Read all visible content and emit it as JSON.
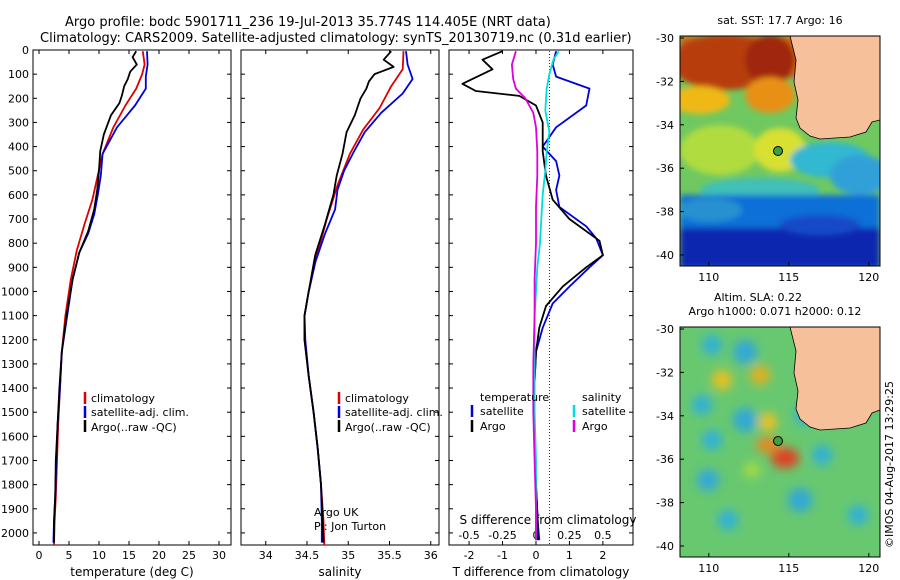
{
  "header": {
    "line1": "Argo profile: bodc 5901711_236 19-Jul-2013 35.774S 114.405E (NRT data)",
    "line2": "Climatology: CARS2009. Satellite-adjusted climatology: synTS_20130719.nc (0.31d earlier)"
  },
  "colors": {
    "climatology": "#dd0000",
    "satellite": "#0000dd",
    "argo": "#000000",
    "sal_satellite": "#00dddd",
    "sal_argo": "#dd00dd",
    "land": "#f5c09a"
  },
  "legend": {
    "climatology": "climatology",
    "satellite": "satellite-adj. clim.",
    "argo": "Argo(..raw -QC)",
    "temperature_head": "temperature",
    "salinity_head": "salinity",
    "satellite_short": "satellite",
    "argo_short": "Argo"
  },
  "float_info": {
    "line1": "Argo UK",
    "line2": "PI: Jon Turton"
  },
  "footer": {
    "timestamp": "©IMOS 04-Aug-2017 13:29:25"
  },
  "map_top": {
    "title": "sat. SST: 17.7 Argo: 16",
    "icon": "sst-map"
  },
  "map_bottom": {
    "title1": "Altim. SLA: 0.22",
    "title2": "Argo h1000: 0.071 h2000: 0.12",
    "icon": "sla-map"
  },
  "map_axes": {
    "lat_ticks": [
      "-30",
      "-32",
      "-34",
      "-36",
      "-38",
      "-40"
    ],
    "lon_ticks": [
      "110",
      "115",
      "120"
    ]
  },
  "chart_data": [
    {
      "type": "line",
      "xlabel": "temperature (deg C)",
      "ylabel": "",
      "xlim": [
        -1,
        32
      ],
      "ylim": [
        2050,
        0
      ],
      "xticks": [
        "0",
        "5",
        "10",
        "15",
        "20",
        "25",
        "30"
      ],
      "yticks": [
        "0",
        "100",
        "200",
        "300",
        "400",
        "500",
        "600",
        "700",
        "800",
        "900",
        "1000",
        "1100",
        "1200",
        "1300",
        "1400",
        "1500",
        "1600",
        "1700",
        "1800",
        "1900",
        "2000"
      ],
      "series": [
        {
          "name": "climatology",
          "color": "#dd0000",
          "points": [
            [
              17.3,
              5
            ],
            [
              17.6,
              60
            ],
            [
              17.2,
              100
            ],
            [
              16.2,
              160
            ],
            [
              14.4,
              230
            ],
            [
              12.4,
              320
            ],
            [
              10.6,
              430
            ],
            [
              9.7,
              530
            ],
            [
              8.9,
              620
            ],
            [
              7.6,
              720
            ],
            [
              6.3,
              830
            ],
            [
              5.3,
              950
            ],
            [
              4.4,
              1100
            ],
            [
              3.8,
              1250
            ],
            [
              3.5,
              1400
            ],
            [
              3.2,
              1550
            ],
            [
              3.0,
              1700
            ],
            [
              2.8,
              1850
            ],
            [
              2.6,
              1950
            ],
            [
              2.5,
              2050
            ]
          ]
        },
        {
          "name": "satellite-adj. clim.",
          "color": "#0000dd",
          "points": [
            [
              18.0,
              5
            ],
            [
              18.1,
              60
            ],
            [
              17.8,
              110
            ],
            [
              17.8,
              160
            ],
            [
              16.0,
              230
            ],
            [
              13.0,
              320
            ],
            [
              10.6,
              430
            ],
            [
              10.3,
              520
            ],
            [
              9.8,
              600
            ],
            [
              9.2,
              680
            ],
            [
              8.2,
              760
            ],
            [
              6.7,
              840
            ],
            [
              5.6,
              950
            ],
            [
              4.7,
              1100
            ],
            [
              3.8,
              1250
            ],
            [
              3.5,
              1400
            ],
            [
              3.1,
              1550
            ],
            [
              2.9,
              1700
            ],
            [
              2.7,
              1850
            ],
            [
              2.5,
              1950
            ],
            [
              2.4,
              2040
            ]
          ]
        },
        {
          "name": "Argo(..raw -QC)",
          "color": "#000000",
          "points": [
            [
              16.2,
              5
            ],
            [
              15.6,
              30
            ],
            [
              16.3,
              60
            ],
            [
              15.2,
              90
            ],
            [
              14.8,
              120
            ],
            [
              14.2,
              150
            ],
            [
              13.8,
              190
            ],
            [
              13.4,
              220
            ],
            [
              12.0,
              270
            ],
            [
              10.8,
              350
            ],
            [
              10.2,
              420
            ],
            [
              10.0,
              500
            ],
            [
              9.7,
              580
            ],
            [
              9.2,
              660
            ],
            [
              8.2,
              750
            ],
            [
              6.7,
              840
            ],
            [
              5.6,
              950
            ],
            [
              4.6,
              1100
            ],
            [
              3.8,
              1250
            ],
            [
              3.4,
              1400
            ],
            [
              3.1,
              1550
            ],
            [
              2.8,
              1700
            ],
            [
              2.7,
              1850
            ],
            [
              2.5,
              1960
            ],
            [
              2.5,
              2040
            ]
          ]
        }
      ]
    },
    {
      "type": "line",
      "xlabel": "salinity",
      "ylabel": "",
      "xlim": [
        33.7,
        36.1
      ],
      "ylim": [
        2050,
        0
      ],
      "xticks": [
        "34",
        "34.5",
        "35",
        "35.5",
        "36"
      ],
      "yticks": [],
      "series": [
        {
          "name": "climatology",
          "color": "#dd0000",
          "points": [
            [
              35.67,
              5
            ],
            [
              35.66,
              80
            ],
            [
              35.52,
              150
            ],
            [
              35.38,
              240
            ],
            [
              35.18,
              330
            ],
            [
              35.02,
              430
            ],
            [
              34.87,
              560
            ],
            [
              34.74,
              700
            ],
            [
              34.62,
              850
            ],
            [
              34.52,
              1000
            ],
            [
              34.47,
              1100
            ],
            [
              34.47,
              1200
            ],
            [
              34.52,
              1350
            ],
            [
              34.58,
              1500
            ],
            [
              34.63,
              1650
            ],
            [
              34.67,
              1800
            ],
            [
              34.7,
              1950
            ],
            [
              34.71,
              2050
            ]
          ]
        },
        {
          "name": "satellite-adj. clim.",
          "color": "#0000dd",
          "points": [
            [
              35.7,
              5
            ],
            [
              35.72,
              60
            ],
            [
              35.78,
              120
            ],
            [
              35.66,
              180
            ],
            [
              35.4,
              260
            ],
            [
              35.2,
              340
            ],
            [
              35.07,
              420
            ],
            [
              34.95,
              500
            ],
            [
              34.87,
              580
            ],
            [
              34.84,
              660
            ],
            [
              34.72,
              760
            ],
            [
              34.6,
              880
            ],
            [
              34.52,
              1000
            ],
            [
              34.47,
              1100
            ],
            [
              34.48,
              1200
            ],
            [
              34.52,
              1350
            ],
            [
              34.58,
              1500
            ],
            [
              34.63,
              1650
            ],
            [
              34.67,
              1800
            ],
            [
              34.68,
              1950
            ],
            [
              34.68,
              2040
            ]
          ]
        },
        {
          "name": "Argo(..raw -QC)",
          "color": "#000000",
          "points": [
            [
              35.52,
              5
            ],
            [
              35.43,
              40
            ],
            [
              35.55,
              70
            ],
            [
              35.32,
              100
            ],
            [
              35.25,
              130
            ],
            [
              35.22,
              160
            ],
            [
              35.15,
              200
            ],
            [
              35.12,
              230
            ],
            [
              35.08,
              270
            ],
            [
              34.98,
              340
            ],
            [
              34.93,
              430
            ],
            [
              34.86,
              520
            ],
            [
              34.82,
              600
            ],
            [
              34.72,
              720
            ],
            [
              34.6,
              850
            ],
            [
              34.52,
              1000
            ],
            [
              34.47,
              1100
            ],
            [
              34.47,
              1200
            ],
            [
              34.52,
              1350
            ],
            [
              34.58,
              1500
            ],
            [
              34.63,
              1650
            ],
            [
              34.67,
              1800
            ],
            [
              34.69,
              1950
            ],
            [
              34.7,
              2040
            ]
          ]
        }
      ]
    },
    {
      "type": "line",
      "xlabel": "T difference from climatology",
      "xlabel_top": "S difference from climatology",
      "xlim": [
        -2.6,
        2.9
      ],
      "ylim": [
        2050,
        0
      ],
      "xticks": [
        "-2",
        "-1",
        "0",
        "1",
        "2"
      ],
      "xticks_top": [
        "-0.5",
        "-0.25",
        "0",
        "0.25",
        "0.5"
      ],
      "series": [
        {
          "name": "temperature satellite",
          "color": "#0000dd",
          "points": [
            [
              0.6,
              5
            ],
            [
              0.5,
              60
            ],
            [
              0.6,
              110
            ],
            [
              1.6,
              160
            ],
            [
              1.5,
              230
            ],
            [
              0.6,
              320
            ],
            [
              0.2,
              400
            ],
            [
              0.6,
              460
            ],
            [
              0.7,
              520
            ],
            [
              0.6,
              580
            ],
            [
              0.7,
              650
            ],
            [
              1.5,
              730
            ],
            [
              1.8,
              780
            ],
            [
              2.0,
              850
            ],
            [
              1.6,
              900
            ],
            [
              1.0,
              980
            ],
            [
              0.5,
              1050
            ],
            [
              0.2,
              1150
            ],
            [
              0.0,
              1250
            ],
            [
              -0.05,
              1400
            ],
            [
              -0.05,
              1600
            ],
            [
              0.0,
              1800
            ],
            [
              0.05,
              1950
            ],
            [
              0.1,
              2030
            ]
          ]
        },
        {
          "name": "temperature Argo",
          "color": "#000000",
          "points": [
            [
              -1.0,
              5
            ],
            [
              -1.6,
              40
            ],
            [
              -1.3,
              80
            ],
            [
              -2.2,
              140
            ],
            [
              -1.8,
              170
            ],
            [
              -0.5,
              190
            ],
            [
              0.0,
              230
            ],
            [
              0.2,
              300
            ],
            [
              0.2,
              420
            ],
            [
              0.3,
              520
            ],
            [
              0.5,
              620
            ],
            [
              1.0,
              700
            ],
            [
              1.9,
              790
            ],
            [
              2.0,
              850
            ],
            [
              1.5,
              900
            ],
            [
              0.8,
              980
            ],
            [
              0.3,
              1060
            ],
            [
              0.1,
              1150
            ],
            [
              0.0,
              1250
            ],
            [
              -0.05,
              1400
            ],
            [
              -0.05,
              1600
            ],
            [
              0.0,
              1800
            ],
            [
              0.05,
              1950
            ],
            [
              0.05,
              2030
            ]
          ]
        },
        {
          "name": "salinity satellite",
          "color": "#00dddd",
          "points": [
            [
              0.17,
              5
            ],
            [
              0.13,
              40
            ],
            [
              0.1,
              100
            ],
            [
              0.08,
              160
            ],
            [
              0.07,
              250
            ],
            [
              0.1,
              340
            ],
            [
              0.08,
              420
            ],
            [
              0.07,
              500
            ],
            [
              0.05,
              600
            ],
            [
              0.04,
              700
            ],
            [
              0.03,
              800
            ],
            [
              0.01,
              900
            ],
            [
              0.0,
              1000
            ],
            [
              -0.01,
              1100
            ],
            [
              -0.01,
              1300
            ],
            [
              -0.01,
              1500
            ],
            [
              0.0,
              1700
            ],
            [
              0.0,
              1900
            ],
            [
              0.0,
              2030
            ]
          ]
        },
        {
          "name": "salinity Argo",
          "color": "#dd00dd",
          "points": [
            [
              -0.15,
              5
            ],
            [
              -0.18,
              60
            ],
            [
              -0.17,
              120
            ],
            [
              -0.15,
              160
            ],
            [
              -0.08,
              200
            ],
            [
              -0.02,
              260
            ],
            [
              0.0,
              320
            ],
            [
              0.01,
              420
            ],
            [
              0.01,
              520
            ],
            [
              0.0,
              650
            ],
            [
              0.0,
              800
            ],
            [
              -0.01,
              950
            ],
            [
              -0.01,
              1100
            ],
            [
              -0.02,
              1300
            ],
            [
              -0.02,
              1500
            ],
            [
              -0.01,
              1700
            ],
            [
              0.0,
              1900
            ],
            [
              0.0,
              2030
            ]
          ]
        }
      ]
    }
  ]
}
